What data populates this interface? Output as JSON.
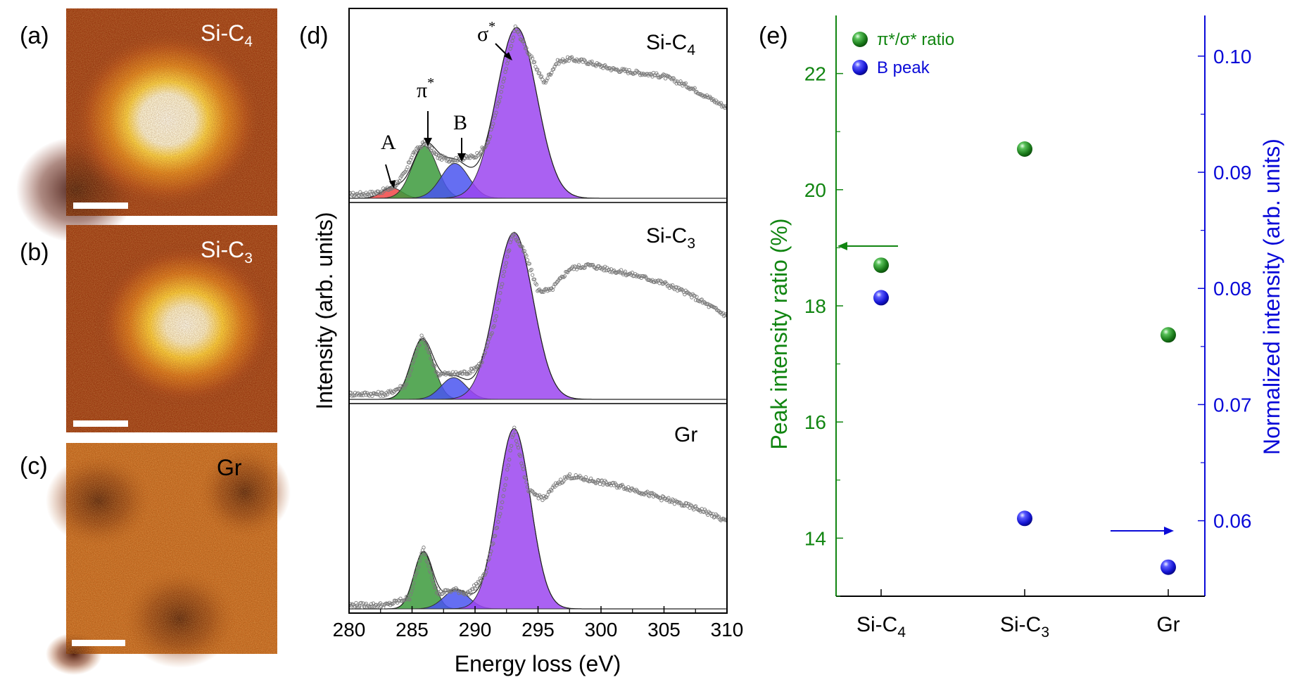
{
  "panels": {
    "a": {
      "label": "(a)",
      "title": "Si-C",
      "sub": "4"
    },
    "b": {
      "label": "(b)",
      "title": "Si-C",
      "sub": "3"
    },
    "c": {
      "label": "(c)",
      "title": "Gr",
      "sub": ""
    }
  },
  "chart_data": [
    {
      "id": "d",
      "type": "line",
      "panel_label": "(d)",
      "xlabel": "Energy loss (eV)",
      "ylabel": "Intensity (arb. units)",
      "xlim": [
        280,
        310
      ],
      "xticks": [
        280,
        285,
        290,
        295,
        300,
        305,
        310
      ],
      "annotations": {
        "A": "A",
        "pi": "π",
        "B": "B",
        "sigma": "σ",
        "star": "*"
      },
      "series": [
        {
          "name": "Si-C",
          "sub": "4",
          "data_points": [
            [
              280,
              0.02
            ],
            [
              282,
              0.03
            ],
            [
              283.5,
              0.06
            ],
            [
              284.5,
              0.15
            ],
            [
              285,
              0.25
            ],
            [
              286,
              0.32
            ],
            [
              287,
              0.24
            ],
            [
              288,
              0.22
            ],
            [
              289,
              0.23
            ],
            [
              290,
              0.24
            ],
            [
              291,
              0.31
            ],
            [
              292,
              0.58
            ],
            [
              293.2,
              0.98
            ],
            [
              294.5,
              0.8
            ],
            [
              295.5,
              0.66
            ],
            [
              296.5,
              0.78
            ],
            [
              297.5,
              0.8
            ],
            [
              299,
              0.78
            ],
            [
              301,
              0.74
            ],
            [
              303,
              0.72
            ],
            [
              305,
              0.7
            ],
            [
              307,
              0.64
            ],
            [
              309,
              0.56
            ],
            [
              310,
              0.52
            ]
          ],
          "peaks": [
            {
              "name": "A",
              "center": 283.4,
              "height": 0.06,
              "width": 0.8,
              "color": "#f04545"
            },
            {
              "name": "π*",
              "center": 286.0,
              "height": 0.3,
              "width": 1.0,
              "color": "#3c9a3c"
            },
            {
              "name": "B",
              "center": 288.4,
              "height": 0.2,
              "width": 1.1,
              "color": "#4a55f0"
            },
            {
              "name": "σ*",
              "center": 293.3,
              "height": 0.98,
              "width": 1.6,
              "color": "#9b45f0"
            }
          ]
        },
        {
          "name": "Si-C",
          "sub": "3",
          "data_points": [
            [
              280,
              0.03
            ],
            [
              283,
              0.03
            ],
            [
              284.5,
              0.08
            ],
            [
              285.8,
              0.35
            ],
            [
              287,
              0.14
            ],
            [
              288.3,
              0.14
            ],
            [
              289.5,
              0.15
            ],
            [
              290.5,
              0.2
            ],
            [
              291.5,
              0.4
            ],
            [
              292.3,
              0.7
            ],
            [
              293,
              0.92
            ],
            [
              294,
              0.8
            ],
            [
              295,
              0.6
            ],
            [
              296,
              0.6
            ],
            [
              297.5,
              0.72
            ],
            [
              299,
              0.74
            ],
            [
              301,
              0.71
            ],
            [
              303,
              0.68
            ],
            [
              305,
              0.64
            ],
            [
              307,
              0.58
            ],
            [
              309,
              0.5
            ],
            [
              310,
              0.46
            ]
          ],
          "peaks": [
            {
              "name": "π*",
              "center": 285.8,
              "height": 0.33,
              "width": 0.9,
              "color": "#3c9a3c"
            },
            {
              "name": "B",
              "center": 288.3,
              "height": 0.12,
              "width": 1.0,
              "color": "#4a55f0"
            },
            {
              "name": "σ*",
              "center": 293.1,
              "height": 0.92,
              "width": 1.5,
              "color": "#9b45f0"
            }
          ]
        },
        {
          "name": "Gr",
          "sub": "",
          "data_points": [
            [
              280,
              0.02
            ],
            [
              283,
              0.02
            ],
            [
              284.8,
              0.06
            ],
            [
              285.9,
              0.32
            ],
            [
              287,
              0.08
            ],
            [
              288.4,
              0.1
            ],
            [
              289.5,
              0.08
            ],
            [
              290.8,
              0.18
            ],
            [
              292,
              0.5
            ],
            [
              293.1,
              0.95
            ],
            [
              294.2,
              0.62
            ],
            [
              295.5,
              0.58
            ],
            [
              296.5,
              0.66
            ],
            [
              297.5,
              0.7
            ],
            [
              299,
              0.68
            ],
            [
              300.5,
              0.66
            ],
            [
              302,
              0.64
            ],
            [
              304,
              0.6
            ],
            [
              306,
              0.56
            ],
            [
              308,
              0.52
            ],
            [
              310,
              0.46
            ]
          ],
          "peaks": [
            {
              "name": "π*",
              "center": 285.9,
              "height": 0.3,
              "width": 0.75,
              "color": "#3c9a3c"
            },
            {
              "name": "B",
              "center": 288.5,
              "height": 0.1,
              "width": 1.0,
              "color": "#4a55f0"
            },
            {
              "name": "σ*",
              "center": 293.1,
              "height": 0.95,
              "width": 1.3,
              "color": "#9b45f0"
            }
          ]
        }
      ]
    },
    {
      "id": "e",
      "type": "scatter",
      "panel_label": "(e)",
      "categories": [
        {
          "main": "Si-C",
          "sub": "4"
        },
        {
          "main": "Si-C",
          "sub": "3"
        },
        {
          "main": "Gr",
          "sub": ""
        }
      ],
      "ylabel_left": "Peak intensity ratio (%)",
      "ylabel_right": "Normalized intensity (arb. units)",
      "ylim_left": [
        13,
        23
      ],
      "yticks_left": [
        14,
        16,
        18,
        20,
        22
      ],
      "yticklabels_left": [
        "14",
        "16",
        "18",
        "20",
        "22"
      ],
      "ylim_right": [
        0.0535,
        0.1035
      ],
      "yticks_right": [
        0.06,
        0.07,
        0.08,
        0.09,
        0.1
      ],
      "yticklabels_right": [
        "0.06",
        "0.07",
        "0.08",
        "0.09",
        "0.10"
      ],
      "series": [
        {
          "name": "π*/σ* ratio",
          "axis": "left",
          "color": "#1f8a1f",
          "values": [
            18.7,
            20.7,
            17.5
          ]
        },
        {
          "name": "B peak",
          "axis": "right",
          "color": "#1515ee",
          "values": [
            0.0792,
            0.0602,
            0.056
          ]
        }
      ],
      "colors": {
        "left_axis": "#118511",
        "right_axis": "#0a0ad8"
      }
    }
  ]
}
